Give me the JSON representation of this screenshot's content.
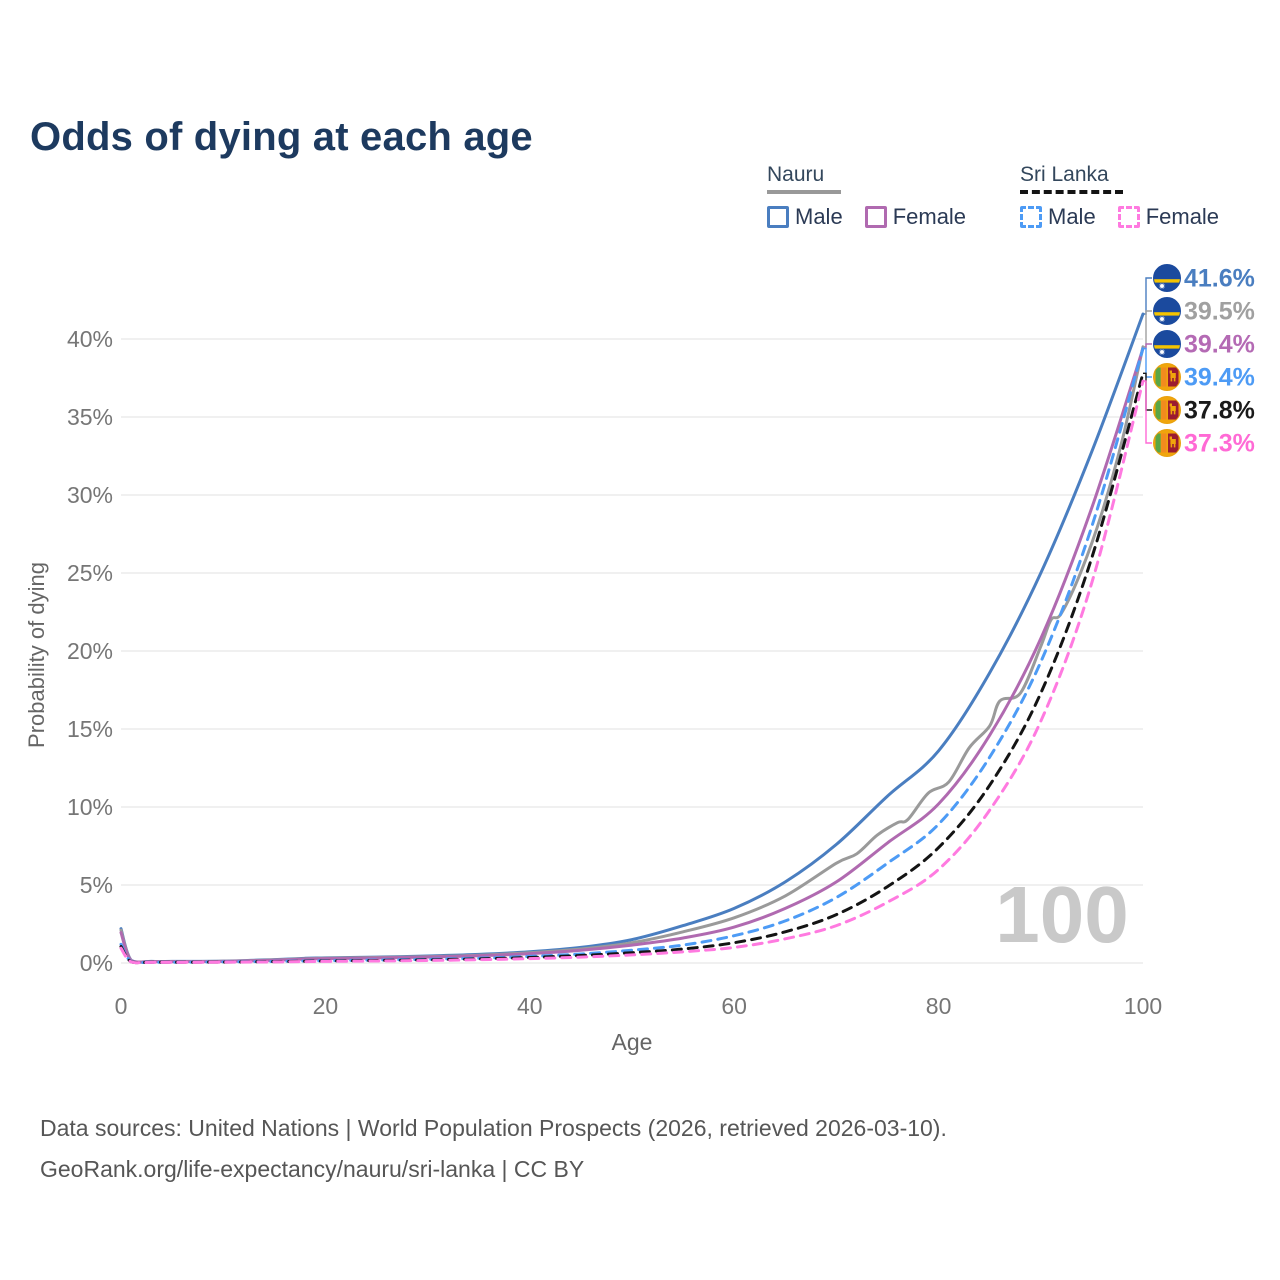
{
  "title": "Odds of dying at each age",
  "legend": {
    "groups": [
      {
        "name": "Nauru",
        "line_style": "solid",
        "underline_color": "#999999",
        "items": [
          {
            "label": "Male",
            "color": "#4a7ec0"
          },
          {
            "label": "Female",
            "color": "#b06ab0"
          }
        ]
      },
      {
        "name": "Sri Lanka",
        "line_style": "dashed",
        "underline_color": "#141414",
        "items": [
          {
            "label": "Male",
            "color": "#4d9bf5"
          },
          {
            "label": "Female",
            "color": "#ff7ae0"
          }
        ]
      }
    ]
  },
  "watermark": "100",
  "footer": {
    "line1": "Data sources: United Nations | World Population Prospects (2026, retrieved 2026-03-10).",
    "line2": "GeoRank.org/life-expectancy/nauru/sri-lanka | CC BY"
  },
  "chart_data": {
    "type": "line",
    "title": "Odds of dying at each age",
    "xlabel": "Age",
    "ylabel": "Probability of dying",
    "xlim": [
      0,
      100
    ],
    "ylim": [
      0,
      43
    ],
    "x_ticks": [
      0,
      20,
      40,
      60,
      80,
      100
    ],
    "y_ticks": [
      0,
      5,
      10,
      15,
      20,
      25,
      30,
      35,
      40
    ],
    "y_tick_suffix": "%",
    "grid": "horizontal",
    "legend_position": "top-right",
    "series": [
      {
        "name": "Nauru Male",
        "country": "Nauru",
        "flag": "nauru",
        "color": "#4a7ec0",
        "dashed": false,
        "end_label": "41.6%",
        "label_color": "#4a7ec0",
        "x": [
          0,
          1,
          3,
          5,
          10,
          15,
          18,
          20,
          25,
          30,
          35,
          40,
          45,
          50,
          55,
          60,
          65,
          70,
          75,
          80,
          85,
          90,
          95,
          100
        ],
        "y": [
          2.2,
          0.18,
          0.1,
          0.1,
          0.12,
          0.22,
          0.3,
          0.33,
          0.38,
          0.45,
          0.55,
          0.72,
          1.0,
          1.5,
          2.4,
          3.5,
          5.2,
          7.6,
          10.7,
          13.6,
          18.6,
          25.0,
          32.8,
          41.6
        ]
      },
      {
        "name": "Nauru",
        "country": "Nauru",
        "flag": "nauru",
        "color": "#9a9a9a",
        "dashed": false,
        "end_label": "39.5%",
        "label_color": "#a0a0a0",
        "x": [
          0,
          1,
          3,
          5,
          10,
          15,
          18,
          20,
          25,
          30,
          35,
          40,
          45,
          50,
          55,
          60,
          65,
          70,
          72,
          74,
          76,
          77,
          79,
          81,
          83,
          85,
          86,
          88,
          90,
          91,
          92,
          94,
          96,
          98,
          100
        ],
        "y": [
          2.1,
          0.16,
          0.09,
          0.09,
          0.11,
          0.2,
          0.27,
          0.3,
          0.35,
          0.41,
          0.5,
          0.66,
          0.9,
          1.3,
          2.0,
          2.9,
          4.3,
          6.4,
          7.0,
          8.2,
          9.0,
          9.2,
          10.9,
          11.6,
          13.8,
          15.2,
          16.8,
          17.3,
          20.3,
          22.0,
          22.4,
          25.2,
          28.9,
          33.6,
          39.5
        ]
      },
      {
        "name": "Nauru Female",
        "country": "Nauru",
        "flag": "nauru",
        "color": "#b06ab0",
        "dashed": false,
        "end_label": "39.4%",
        "label_color": "#b46ab4",
        "x": [
          0,
          1,
          3,
          5,
          10,
          15,
          18,
          20,
          25,
          30,
          35,
          40,
          45,
          50,
          55,
          60,
          65,
          70,
          75,
          80,
          85,
          90,
          95,
          100
        ],
        "y": [
          1.95,
          0.15,
          0.09,
          0.09,
          0.1,
          0.18,
          0.25,
          0.28,
          0.32,
          0.38,
          0.46,
          0.6,
          0.82,
          1.15,
          1.6,
          2.3,
          3.5,
          5.2,
          7.7,
          10.2,
          14.6,
          20.8,
          29.2,
          39.4
        ]
      },
      {
        "name": "Sri Lanka Male",
        "country": "Sri Lanka",
        "flag": "sri-lanka",
        "color": "#4d9bf5",
        "dashed": true,
        "end_label": "39.4%",
        "label_color": "#4d9bf5",
        "x": [
          0,
          1,
          3,
          5,
          10,
          15,
          18,
          20,
          25,
          30,
          35,
          40,
          45,
          50,
          55,
          60,
          65,
          70,
          75,
          80,
          85,
          90,
          95,
          100
        ],
        "y": [
          1.2,
          0.09,
          0.05,
          0.05,
          0.07,
          0.1,
          0.13,
          0.15,
          0.19,
          0.24,
          0.31,
          0.42,
          0.58,
          0.82,
          1.15,
          1.75,
          2.7,
          4.2,
          6.4,
          8.9,
          13.2,
          19.3,
          28.0,
          39.4
        ]
      },
      {
        "name": "Sri Lanka",
        "country": "Sri Lanka",
        "flag": "sri-lanka",
        "color": "#141414",
        "dashed": true,
        "end_label": "37.8%",
        "label_color": "#1a1a1a",
        "x": [
          0,
          1,
          3,
          5,
          10,
          15,
          18,
          20,
          25,
          30,
          35,
          40,
          45,
          50,
          55,
          60,
          65,
          70,
          75,
          80,
          85,
          90,
          95,
          100
        ],
        "y": [
          1.05,
          0.08,
          0.05,
          0.05,
          0.06,
          0.09,
          0.11,
          0.13,
          0.16,
          0.2,
          0.26,
          0.35,
          0.48,
          0.66,
          0.9,
          1.3,
          2.0,
          3.1,
          4.9,
          7.4,
          11.4,
          17.3,
          26.0,
          37.8
        ]
      },
      {
        "name": "Sri Lanka Female",
        "country": "Sri Lanka",
        "flag": "sri-lanka",
        "color": "#ff7ae0",
        "dashed": true,
        "end_label": "37.3%",
        "label_color": "#ff6ad5",
        "x": [
          0,
          1,
          3,
          5,
          10,
          15,
          18,
          20,
          25,
          30,
          35,
          40,
          45,
          50,
          55,
          60,
          65,
          70,
          75,
          80,
          85,
          90,
          95,
          100
        ],
        "y": [
          0.95,
          0.07,
          0.04,
          0.04,
          0.05,
          0.07,
          0.09,
          0.1,
          0.13,
          0.16,
          0.21,
          0.28,
          0.38,
          0.52,
          0.72,
          1.0,
          1.55,
          2.4,
          3.9,
          6.0,
          9.8,
          15.5,
          24.4,
          37.3
        ]
      }
    ]
  }
}
